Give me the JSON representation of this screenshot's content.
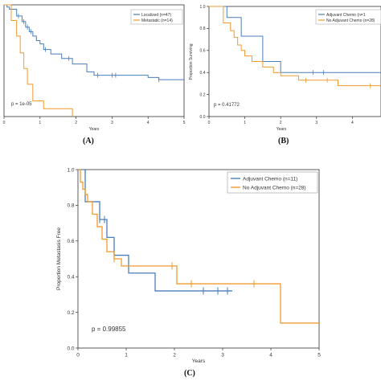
{
  "colors": {
    "blue": "#4a7ebb",
    "orange": "#f09a30"
  },
  "chart_data": [
    {
      "type": "line",
      "panel_label": "(A)",
      "xlabel": "Years",
      "ylabel": "",
      "xlim": [
        0,
        5
      ],
      "ylim": [
        0,
        1.0
      ],
      "xticks": [
        "0",
        "1",
        "2",
        "3",
        "4",
        "5"
      ],
      "yticks": [],
      "annotation": "p = 1e-05",
      "legend_position": "top-right",
      "series": [
        {
          "name": "Localized (n=47)",
          "color": "#4a7ebb",
          "x": [
            0,
            0.08,
            0.15,
            0.35,
            0.5,
            0.6,
            0.7,
            0.8,
            0.9,
            1.0,
            1.1,
            1.3,
            1.6,
            1.9,
            2.3,
            2.5,
            4.0,
            4.3,
            5.0
          ],
          "y": [
            1.0,
            0.98,
            0.96,
            0.9,
            0.85,
            0.8,
            0.76,
            0.72,
            0.68,
            0.65,
            0.6,
            0.56,
            0.52,
            0.47,
            0.4,
            0.37,
            0.35,
            0.33,
            0.33
          ],
          "censored_x": [
            0.4,
            0.55,
            0.65,
            0.75,
            1.15,
            1.8,
            2.6,
            3.0,
            3.1,
            4.3
          ]
        },
        {
          "name": "Metastatic (n=14)",
          "color": "#f09a30",
          "x": [
            0,
            0.2,
            0.35,
            0.45,
            0.55,
            0.65,
            0.8,
            1.1,
            1.9
          ],
          "y": [
            1.0,
            0.86,
            0.72,
            0.57,
            0.43,
            0.29,
            0.14,
            0.07,
            0.0
          ],
          "censored_x": []
        }
      ]
    },
    {
      "type": "line",
      "panel_label": "(B)",
      "xlabel": "Years",
      "ylabel": "Proportion Surviving",
      "xlim": [
        0,
        5
      ],
      "ylim": [
        0,
        1.0
      ],
      "xticks": [
        "0",
        "1",
        "2",
        "3",
        "4"
      ],
      "yticks": [
        "0.0",
        "0.2",
        "0.4",
        "0.6",
        "0.8",
        "1.0"
      ],
      "annotation": "p = 0.41772",
      "legend_position": "top-right",
      "series": [
        {
          "name": "Adjuvant Chemo (n=1",
          "color": "#4a7ebb",
          "x": [
            0,
            0.5,
            0.9,
            1.5,
            2.0,
            5.0
          ],
          "y": [
            1.0,
            0.9,
            0.73,
            0.5,
            0.4,
            0.4
          ],
          "censored_x": [
            2.9,
            3.2
          ]
        },
        {
          "name": "No Adjuvant Chemo (n=28)",
          "color": "#f09a30",
          "x": [
            0,
            0.4,
            0.6,
            0.7,
            0.8,
            0.9,
            1.0,
            1.2,
            1.5,
            1.8,
            2.0,
            2.5,
            3.6,
            5.0
          ],
          "y": [
            1.0,
            0.85,
            0.78,
            0.72,
            0.65,
            0.6,
            0.55,
            0.5,
            0.45,
            0.4,
            0.37,
            0.33,
            0.28,
            0.28
          ],
          "censored_x": [
            2.7,
            3.3,
            4.5
          ]
        }
      ]
    },
    {
      "type": "line",
      "panel_label": "(C)",
      "xlabel": "Years",
      "ylabel": "Proportion Metastasis Free",
      "xlim": [
        0,
        5
      ],
      "ylim": [
        0,
        1.0
      ],
      "xticks": [
        "0",
        "1",
        "2",
        "3",
        "4",
        "5"
      ],
      "yticks": [
        "0.0",
        "0.2",
        "0.4",
        "0.6",
        "0.8",
        "1.0"
      ],
      "annotation": "p = 0.99855",
      "legend_position": "top-right",
      "series": [
        {
          "name": "Adjuvant Chemo (n=11)",
          "color": "#4a7ebb",
          "x": [
            0,
            0.15,
            0.45,
            0.6,
            0.75,
            1.05,
            1.6,
            3.2
          ],
          "y": [
            1.0,
            0.82,
            0.72,
            0.62,
            0.52,
            0.42,
            0.32,
            0.32
          ],
          "censored_x": [
            0.45,
            0.55,
            2.6,
            2.9,
            3.1
          ]
        },
        {
          "name": "No Adjuvant Chemo (n=28)",
          "color": "#f09a30",
          "x": [
            0,
            0.05,
            0.1,
            0.15,
            0.2,
            0.3,
            0.4,
            0.5,
            0.6,
            0.75,
            0.9,
            2.05,
            4.2,
            4.3,
            5.0
          ],
          "y": [
            1.0,
            0.93,
            0.89,
            0.86,
            0.82,
            0.75,
            0.68,
            0.61,
            0.54,
            0.5,
            0.46,
            0.36,
            0.14,
            0.14,
            0.14
          ],
          "censored_x": [
            0.75,
            1.95,
            2.35,
            3.65
          ]
        }
      ]
    }
  ]
}
